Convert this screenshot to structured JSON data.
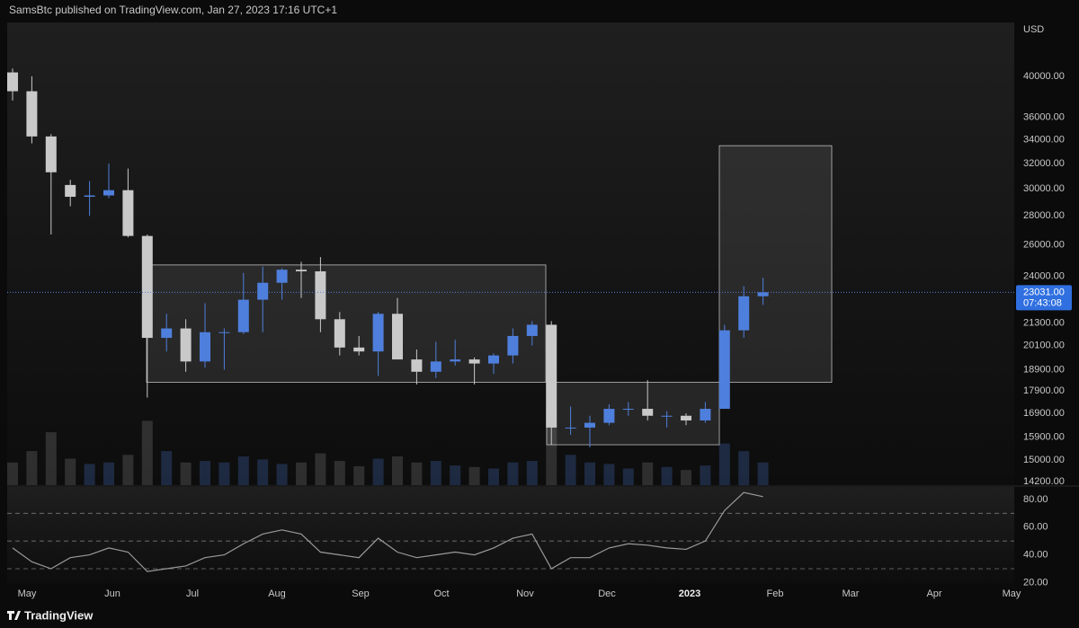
{
  "header": "SamsBtc published on TradingView.com, Jan 27, 2023 17:16 UTC+1",
  "footer": "TradingView",
  "chart_data": {
    "type": "candlestick",
    "currency": "USD",
    "log_scale": true,
    "up_color": "#4f7fdc",
    "down_color": "#c9c9c9",
    "categories": [
      null,
      null,
      null,
      null,
      null,
      null,
      null,
      null,
      null,
      null,
      null,
      null,
      null,
      null,
      null,
      null,
      null,
      null,
      null,
      null,
      null,
      null,
      null,
      null,
      null,
      null,
      null,
      null,
      null,
      null,
      null,
      null,
      null,
      null,
      null,
      null,
      null,
      null,
      null,
      null
    ],
    "open": [
      40400,
      38500,
      34300,
      30300,
      29400,
      29500,
      29900,
      26600,
      20500,
      21000,
      19300,
      20800,
      20800,
      22600,
      23600,
      24400,
      24300,
      21500,
      20000,
      19800,
      21800,
      19400,
      18800,
      19300,
      19400,
      19200,
      19600,
      20600,
      21200,
      16300,
      16300,
      16500,
      17100,
      17100,
      16800,
      16800,
      16600,
      17100,
      20900,
      22800
    ],
    "high": [
      40800,
      40000,
      34500,
      30700,
      30600,
      32000,
      31600,
      26700,
      21800,
      21500,
      22400,
      21000,
      24200,
      24600,
      24500,
      24900,
      25200,
      21900,
      20600,
      21900,
      22700,
      19900,
      20300,
      20400,
      19500,
      19700,
      21000,
      21400,
      21400,
      17200,
      16800,
      17300,
      17400,
      18400,
      17000,
      16900,
      17400,
      21200,
      23400,
      23900
    ],
    "low": [
      37600,
      33700,
      26700,
      28700,
      28000,
      29300,
      26500,
      17600,
      19800,
      18800,
      19000,
      18900,
      20700,
      20800,
      22600,
      22700,
      20800,
      19600,
      19600,
      18600,
      19500,
      18200,
      18500,
      19100,
      18200,
      18700,
      19200,
      20100,
      15600,
      16000,
      15500,
      16400,
      16800,
      16600,
      16300,
      16400,
      16500,
      17100,
      20500,
      22300
    ],
    "close": [
      38500,
      34300,
      31300,
      29400,
      29500,
      29900,
      26600,
      20500,
      21000,
      19300,
      20800,
      20800,
      22600,
      23600,
      24400,
      24300,
      21500,
      20000,
      19800,
      21800,
      19400,
      18800,
      19300,
      19400,
      19200,
      19600,
      20600,
      21200,
      16300,
      16300,
      16500,
      17100,
      17100,
      16800,
      16800,
      16600,
      17100,
      20900,
      22800,
      23031
    ],
    "volume": [
      30,
      45,
      70,
      35,
      28,
      30,
      40,
      85,
      45,
      30,
      32,
      30,
      38,
      34,
      28,
      30,
      42,
      32,
      25,
      35,
      38,
      30,
      32,
      26,
      24,
      22,
      30,
      32,
      95,
      40,
      30,
      28,
      22,
      30,
      24,
      20,
      26,
      55,
      45,
      30
    ],
    "ylim": [
      14070,
      45900
    ],
    "yticks": [
      {
        "value": 14200,
        "label": "14200.00"
      },
      {
        "value": 15000,
        "label": "15000.00"
      },
      {
        "value": 15900,
        "label": "15900.00"
      },
      {
        "value": 16900,
        "label": "16900.00"
      },
      {
        "value": 17900,
        "label": "17900.00"
      },
      {
        "value": 18900,
        "label": "18900.00"
      },
      {
        "value": 20100,
        "label": "20100.00"
      },
      {
        "value": 21300,
        "label": "21300.00"
      },
      {
        "value": 24000,
        "label": "24000.00"
      },
      {
        "value": 26000,
        "label": "26000.00"
      },
      {
        "value": 28000,
        "label": "28000.00"
      },
      {
        "value": 30000,
        "label": "30000.00"
      },
      {
        "value": 32000,
        "label": "32000.00"
      },
      {
        "value": 34000,
        "label": "34000.00"
      },
      {
        "value": 36000,
        "label": "36000.00"
      },
      {
        "value": 40000,
        "label": "40000.00"
      }
    ],
    "x_labels": [
      "May",
      "Jun",
      "Jul",
      "Aug",
      "Sep",
      "Oct",
      "Nov",
      "Dec",
      "2023",
      "Feb",
      "Mar",
      "Apr",
      "May"
    ],
    "last_price": {
      "value": 23031,
      "label": "23031.00"
    },
    "countdown": "07:43:08",
    "zones": [
      {
        "top": 24700,
        "bottom": 18300
      },
      {
        "top": 18300,
        "bottom": 15600
      },
      {
        "top": 33500,
        "bottom": 18300
      }
    ],
    "rsi": {
      "color": "#9a9a9a",
      "values": [
        45,
        35,
        30,
        38,
        40,
        45,
        42,
        28,
        30,
        32,
        38,
        40,
        48,
        55,
        58,
        55,
        42,
        40,
        38,
        52,
        42,
        38,
        40,
        42,
        40,
        45,
        52,
        55,
        30,
        38,
        38,
        45,
        48,
        47,
        45,
        44,
        50,
        72,
        85,
        82
      ],
      "ylim": [
        19,
        89
      ],
      "yticks": [
        {
          "value": 20,
          "label": "20.00"
        },
        {
          "value": 40,
          "label": "40.00"
        },
        {
          "value": 60,
          "label": "60.00"
        },
        {
          "value": 80,
          "label": "80.00"
        }
      ],
      "levels": [
        30,
        50,
        70
      ]
    }
  }
}
